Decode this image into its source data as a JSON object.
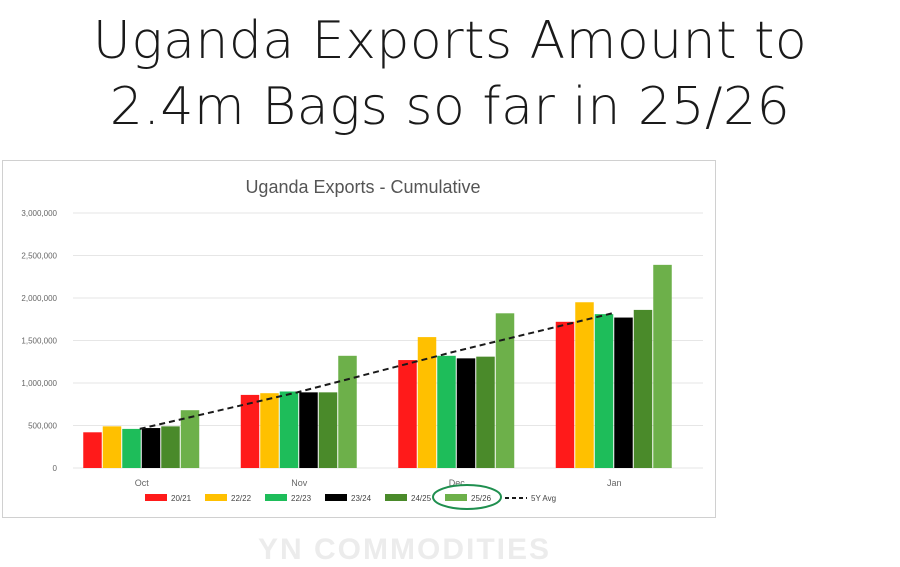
{
  "headline": {
    "line1": "Uganda Exports Amount to",
    "line2": "2.4m Bags so far in 25/26"
  },
  "watermark": "YN COMMODITIES",
  "colors": {
    "20/21": "#ff1a1a",
    "22/22": "#ffc000",
    "22/23": "#1ebd5a",
    "23/24": "#000000",
    "24/25": "#4a8a2a",
    "25/26": "#6db04a",
    "5Y Avg": "#1a1a1a",
    "highlight": "#1f8f4f",
    "grid": "#e6e6e6",
    "axis_text": "#666666"
  },
  "chart_data": {
    "type": "bar",
    "title": "Uganda Exports - Cumulative",
    "categories": [
      "Oct",
      "Nov",
      "Dec",
      "Jan"
    ],
    "ylim": [
      0,
      3000000
    ],
    "yticks": [
      0,
      500000,
      1000000,
      1500000,
      2000000,
      2500000,
      3000000
    ],
    "ytick_labels": [
      "0",
      "500,000",
      "1,000,000",
      "1,500,000",
      "2,000,000",
      "2,500,000",
      "3,000,000"
    ],
    "series": [
      {
        "name": "20/21",
        "values": [
          420000,
          860000,
          1270000,
          1720000
        ]
      },
      {
        "name": "22/22",
        "values": [
          490000,
          880000,
          1540000,
          1950000
        ]
      },
      {
        "name": "22/23",
        "values": [
          460000,
          900000,
          1320000,
          1810000
        ]
      },
      {
        "name": "23/24",
        "values": [
          470000,
          890000,
          1290000,
          1770000
        ]
      },
      {
        "name": "24/25",
        "values": [
          490000,
          890000,
          1310000,
          1860000
        ]
      },
      {
        "name": "25/26",
        "values": [
          680000,
          1320000,
          1820000,
          2390000
        ]
      }
    ],
    "trend": {
      "name": "5Y Avg",
      "style": "dashed",
      "values": [
        460000,
        890000,
        1370000,
        1820000
      ]
    },
    "legend_position": "bottom",
    "highlighted_legend_item": "25/26",
    "grid": true
  }
}
